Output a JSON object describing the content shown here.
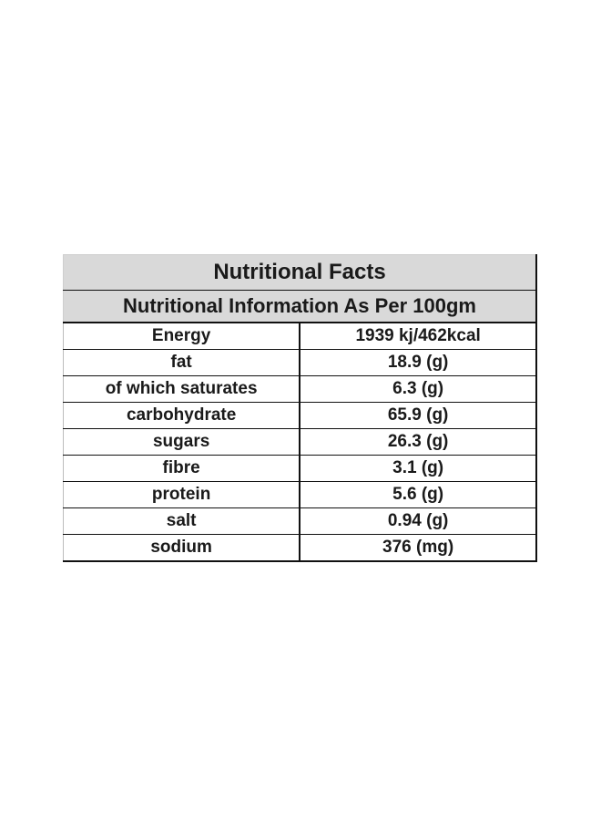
{
  "title": "Nutritional Facts",
  "subtitle": "Nutritional Information As Per 100gm",
  "rows": [
    {
      "name": "Energy",
      "value": "1939 kj/462kcal"
    },
    {
      "name": "fat",
      "value": "18.9 (g)"
    },
    {
      "name": "of which saturates",
      "value": "6.3 (g)"
    },
    {
      "name": "carbohydrate",
      "value": "65.9 (g)"
    },
    {
      "name": "sugars",
      "value": "26.3 (g)"
    },
    {
      "name": "fibre",
      "value": "3.1 (g)"
    },
    {
      "name": "protein",
      "value": "5.6 (g)"
    },
    {
      "name": "salt",
      "value": "0.94 (g)"
    },
    {
      "name": "sodium",
      "value": "376 (mg)"
    }
  ]
}
